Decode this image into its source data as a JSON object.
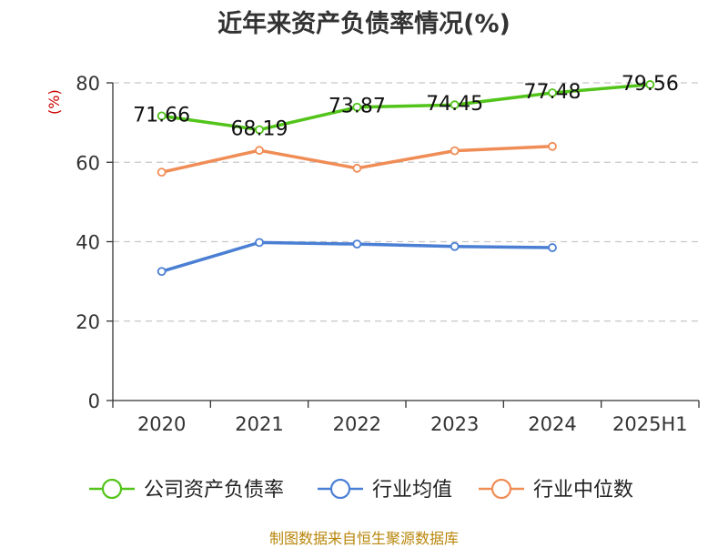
{
  "header": {
    "title": "近年来资产负债率情况(%)",
    "unit_label": "(%)"
  },
  "footer": {
    "source": "制图数据来自恒生聚源数据库"
  },
  "chart_data": {
    "type": "line",
    "title": "近年来资产负债率情况(%)",
    "ylabel": "(%)",
    "xlabel": "",
    "categories": [
      "2020",
      "2021",
      "2022",
      "2023",
      "2024",
      "2025H1"
    ],
    "ylim": [
      0,
      80
    ],
    "yticks": [
      0,
      20,
      40,
      60,
      80
    ],
    "grid": true,
    "legend_position": "bottom",
    "series": [
      {
        "name": "公司资产负债率",
        "color": "#52c41a",
        "values": [
          71.66,
          68.19,
          73.87,
          74.45,
          77.48,
          79.56
        ],
        "data_labels": [
          "71.66",
          "68.19",
          "73.87",
          "74.45",
          "77.48",
          "79.56"
        ]
      },
      {
        "name": "行业均值",
        "color": "#4a7fd4",
        "values": [
          32.5,
          39.8,
          39.4,
          38.8,
          38.5,
          null
        ]
      },
      {
        "name": "行业中位数",
        "color": "#f08c55",
        "values": [
          57.5,
          63.0,
          58.5,
          62.9,
          64.0,
          null
        ]
      }
    ]
  }
}
